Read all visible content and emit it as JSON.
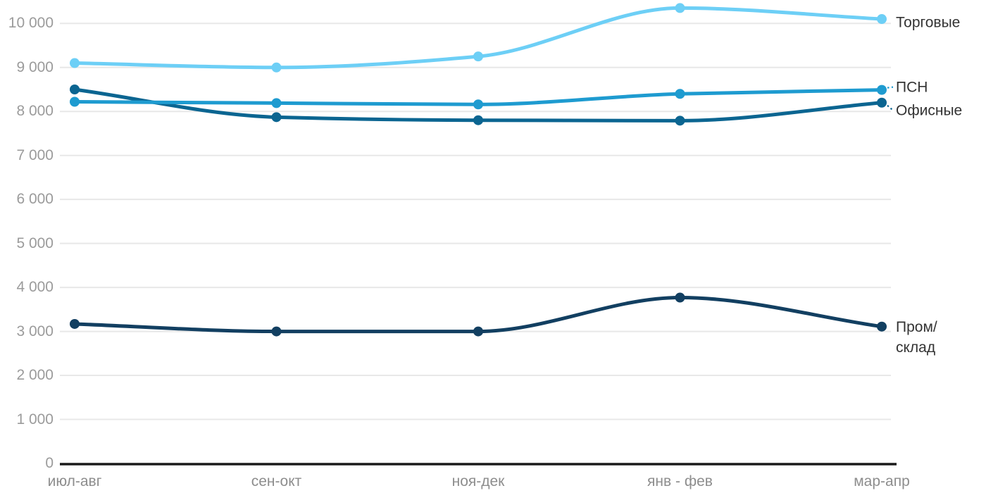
{
  "chart_data": {
    "type": "line",
    "title": "",
    "xlabel": "",
    "ylabel": "",
    "categories": [
      "июл-авг",
      "сен-окт",
      "ноя-дек",
      "янв - фев",
      "мар-апр"
    ],
    "series": [
      {
        "name": "Торговые",
        "color": "#6DCFF6",
        "values": [
          9100,
          9000,
          9250,
          10350,
          10100
        ]
      },
      {
        "name": "ПСН",
        "color": "#1E9BD0",
        "values": [
          8220,
          8190,
          8160,
          8400,
          8490
        ]
      },
      {
        "name": "Офисные",
        "color": "#0B6591",
        "values": [
          8500,
          7870,
          7800,
          7790,
          8200
        ]
      },
      {
        "name": "Пром/склад",
        "color": "#123F61",
        "values": [
          3170,
          3000,
          3000,
          3770,
          3110
        ]
      }
    ],
    "ylim": [
      0,
      10500
    ],
    "y_ticks": [
      0,
      1000,
      2000,
      3000,
      4000,
      5000,
      6000,
      7000,
      8000,
      9000,
      10000
    ],
    "y_tick_labels": [
      "0",
      "1 000",
      "2 000",
      "3 000",
      "4 000",
      "5 000",
      "6 000",
      "7 000",
      "8 000",
      "9 000",
      "10 000"
    ],
    "grid": "horizontal",
    "legend_position": "right-edge-labels",
    "curve": "smooth-monotone",
    "markers": "round-dots"
  },
  "colors": {
    "background": "#FFFFFF",
    "gridline": "#E8E8E8",
    "axis_line": "#1A1A1A",
    "y_tick_label": "#9B9B9B",
    "x_tick_label": "#8D8D8D",
    "series_label": "#333333"
  }
}
